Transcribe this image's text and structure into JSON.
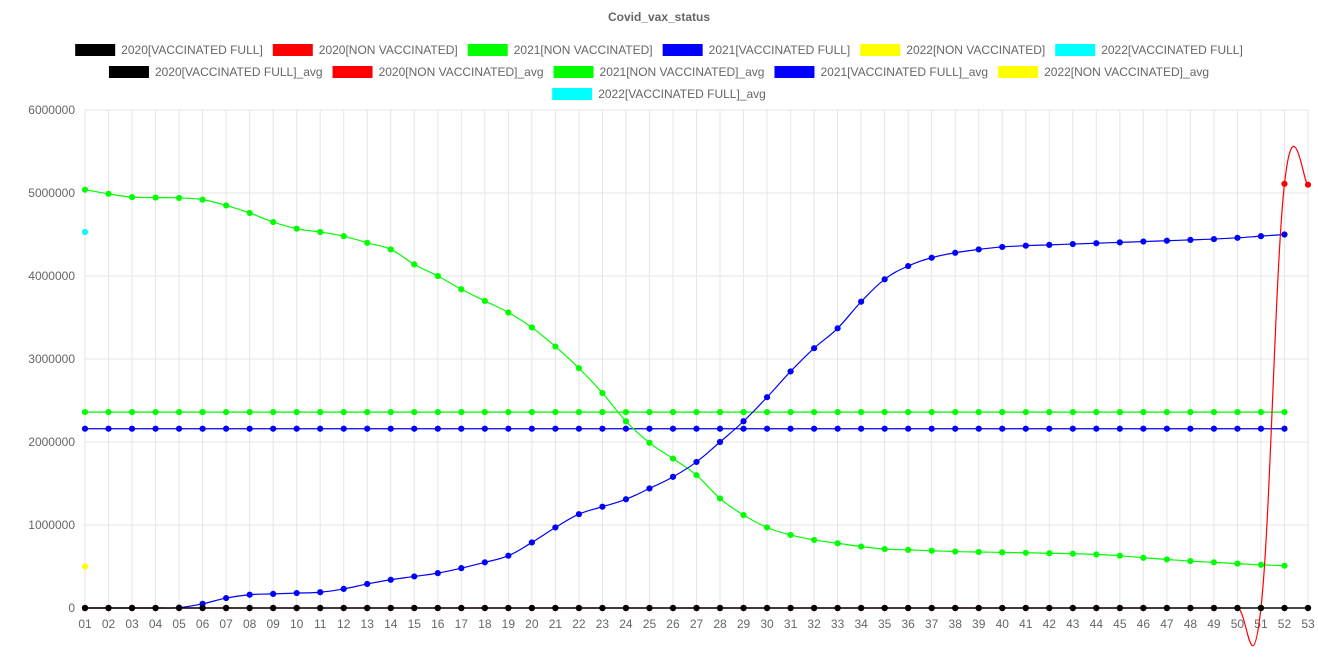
{
  "chart_data": {
    "type": "line",
    "title": "Covid_vax_status",
    "xlabel": "",
    "ylabel": "",
    "ylim": [
      0,
      6000000
    ],
    "yticks": [
      0,
      1000000,
      2000000,
      3000000,
      4000000,
      5000000,
      6000000
    ],
    "grid": true,
    "legend_position": "top",
    "categories": [
      "01",
      "02",
      "03",
      "04",
      "05",
      "06",
      "07",
      "08",
      "09",
      "10",
      "11",
      "12",
      "13",
      "14",
      "15",
      "16",
      "17",
      "18",
      "19",
      "20",
      "21",
      "22",
      "23",
      "24",
      "25",
      "26",
      "27",
      "28",
      "29",
      "30",
      "31",
      "32",
      "33",
      "34",
      "35",
      "36",
      "37",
      "38",
      "39",
      "40",
      "41",
      "42",
      "43",
      "44",
      "45",
      "46",
      "47",
      "48",
      "49",
      "50",
      "51",
      "52",
      "53"
    ],
    "series": [
      {
        "name": "2020[VACCINATED FULL]",
        "color": "#000000",
        "values": [
          0,
          0,
          0,
          0,
          0,
          0,
          0,
          0,
          0,
          0,
          0,
          0,
          0,
          0,
          0,
          0,
          0,
          0,
          0,
          0,
          0,
          0,
          0,
          0,
          0,
          0,
          0,
          0,
          0,
          0,
          0,
          0,
          0,
          0,
          0,
          0,
          0,
          0,
          0,
          0,
          0,
          0,
          0,
          0,
          0,
          0,
          0,
          0,
          0,
          0,
          0,
          0,
          0
        ]
      },
      {
        "name": "2020[NON VACCINATED]",
        "color": "#ff0000",
        "values": [
          0,
          0,
          0,
          0,
          0,
          0,
          0,
          0,
          0,
          0,
          0,
          0,
          0,
          0,
          0,
          0,
          0,
          0,
          0,
          0,
          0,
          0,
          0,
          0,
          0,
          0,
          0,
          0,
          0,
          0,
          0,
          0,
          0,
          0,
          0,
          0,
          0,
          0,
          0,
          0,
          0,
          0,
          0,
          0,
          0,
          0,
          0,
          0,
          0,
          0,
          0,
          5110000,
          5100000
        ]
      },
      {
        "name": "2021[NON VACCINATED]",
        "color": "#00ff00",
        "values": [
          5040000,
          4990000,
          4950000,
          4945000,
          4940000,
          4920000,
          4850000,
          4760000,
          4650000,
          4570000,
          4530000,
          4480000,
          4400000,
          4320000,
          4140000,
          4000000,
          3840000,
          3700000,
          3560000,
          3380000,
          3150000,
          2890000,
          2590000,
          2250000,
          1990000,
          1800000,
          1600000,
          1320000,
          1120000,
          970000,
          880000,
          820000,
          780000,
          740000,
          710000,
          700000,
          690000,
          680000,
          675000,
          670000,
          665000,
          660000,
          655000,
          645000,
          630000,
          605000,
          585000,
          565000,
          550000,
          535000,
          520000,
          510000,
          null
        ]
      },
      {
        "name": "2021[VACCINATED FULL]",
        "color": "#0000ff",
        "values": [
          0,
          0,
          0,
          0,
          5000,
          50000,
          120000,
          160000,
          170000,
          180000,
          190000,
          230000,
          290000,
          340000,
          380000,
          420000,
          480000,
          550000,
          630000,
          790000,
          970000,
          1130000,
          1220000,
          1310000,
          1440000,
          1580000,
          1760000,
          2000000,
          2250000,
          2540000,
          2850000,
          3130000,
          3370000,
          3690000,
          3960000,
          4120000,
          4220000,
          4280000,
          4320000,
          4350000,
          4365000,
          4375000,
          4385000,
          4395000,
          4405000,
          4415000,
          4425000,
          4435000,
          4445000,
          4460000,
          4480000,
          4500000,
          null
        ]
      },
      {
        "name": "2022[NON VACCINATED]",
        "color": "#ffff00",
        "values": [
          500000,
          null,
          null,
          null,
          null,
          null,
          null,
          null,
          null,
          null,
          null,
          null,
          null,
          null,
          null,
          null,
          null,
          null,
          null,
          null,
          null,
          null,
          null,
          null,
          null,
          null,
          null,
          null,
          null,
          null,
          null,
          null,
          null,
          null,
          null,
          null,
          null,
          null,
          null,
          null,
          null,
          null,
          null,
          null,
          null,
          null,
          null,
          null,
          null,
          null,
          null,
          null,
          null
        ]
      },
      {
        "name": "2022[VACCINATED FULL]",
        "color": "#00ffff",
        "values": [
          4530000,
          null,
          null,
          null,
          null,
          null,
          null,
          null,
          null,
          null,
          null,
          null,
          null,
          null,
          null,
          null,
          null,
          null,
          null,
          null,
          null,
          null,
          null,
          null,
          null,
          null,
          null,
          null,
          null,
          null,
          null,
          null,
          null,
          null,
          null,
          null,
          null,
          null,
          null,
          null,
          null,
          null,
          null,
          null,
          null,
          null,
          null,
          null,
          null,
          null,
          null,
          null,
          null
        ]
      },
      {
        "name": "2020[VACCINATED FULL]_avg",
        "color": "#000000",
        "constant": 0,
        "points": 53
      },
      {
        "name": "2020[NON VACCINATED]_avg",
        "color": "#ff0000",
        "constant": 0,
        "points": 0
      },
      {
        "name": "2021[NON VACCINATED]_avg",
        "color": "#00ff00",
        "constant": 2360000,
        "points": 52
      },
      {
        "name": "2021[VACCINATED FULL]_avg",
        "color": "#0000ff",
        "constant": 2160000,
        "points": 52
      },
      {
        "name": "2022[NON VACCINATED]_avg",
        "color": "#ffff00",
        "constant": 0,
        "points": 0
      },
      {
        "name": "2022[VACCINATED FULL]_avg",
        "color": "#00ffff",
        "constant": 0,
        "points": 0
      }
    ],
    "legend_rows": [
      [
        0,
        1,
        2,
        3,
        4,
        5
      ],
      [
        6,
        7,
        8,
        9,
        10
      ],
      [
        11
      ]
    ]
  }
}
